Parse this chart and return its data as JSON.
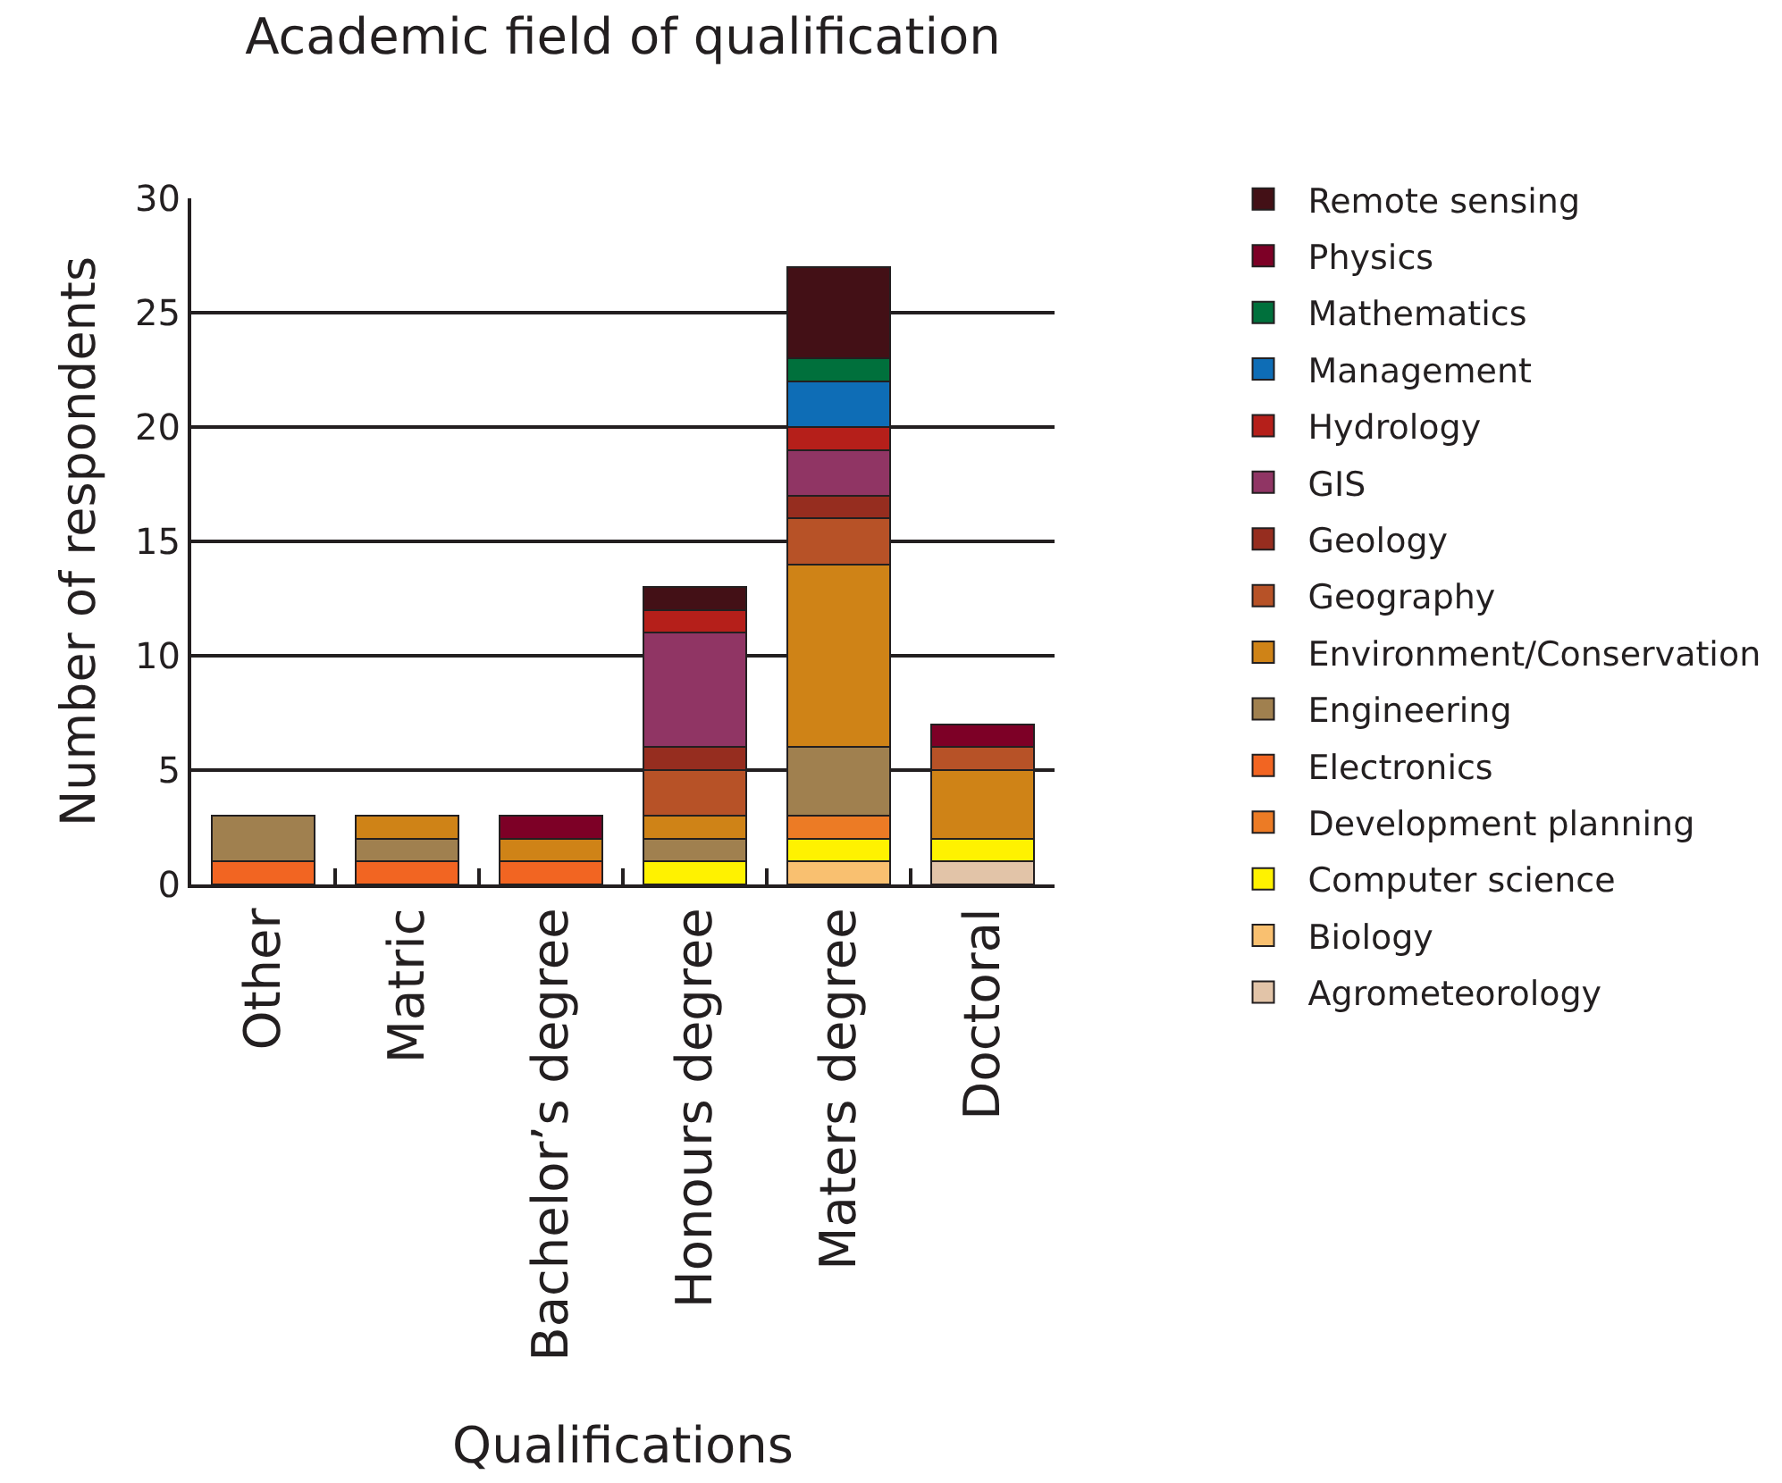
{
  "chart_data": {
    "type": "bar",
    "title": "Academic field of qualification",
    "xlabel": "Qualifications",
    "ylabel": "Number of respondents",
    "categories": [
      "Other",
      "Matric",
      "Bachelor’s degree",
      "Honours degree",
      "Maters degree",
      "Doctoral"
    ],
    "stacked": true,
    "ylim": [
      0,
      30
    ],
    "yticks": [
      0,
      5,
      10,
      15,
      20,
      25,
      30
    ],
    "grid": "y",
    "legend": "right",
    "series": [
      {
        "name": "Agrometeorology",
        "color": "#e2c4a8",
        "values": [
          null,
          null,
          null,
          null,
          null,
          1
        ]
      },
      {
        "name": "Biology",
        "color": "#f9c070",
        "values": [
          null,
          null,
          null,
          null,
          1,
          null
        ]
      },
      {
        "name": "Computer science",
        "color": "#fff200",
        "values": [
          null,
          null,
          null,
          1,
          1,
          1
        ]
      },
      {
        "name": "Development planning",
        "color": "#ec7b25",
        "values": [
          null,
          null,
          null,
          null,
          1,
          null
        ]
      },
      {
        "name": "Electronics",
        "color": "#f26522",
        "values": [
          1,
          1,
          1,
          null,
          null,
          null
        ]
      },
      {
        "name": "Engineering",
        "color": "#a0804f",
        "values": [
          2,
          1,
          null,
          1,
          3,
          null
        ]
      },
      {
        "name": "Environment/Conservation",
        "color": "#cf8317",
        "values": [
          null,
          1,
          1,
          1,
          8,
          3
        ]
      },
      {
        "name": "Geography",
        "color": "#b75227",
        "values": [
          null,
          null,
          null,
          2,
          2,
          1
        ]
      },
      {
        "name": "Geology",
        "color": "#962d1f",
        "values": [
          null,
          null,
          null,
          1,
          1,
          null
        ]
      },
      {
        "name": "GIS",
        "color": "#903564",
        "values": [
          null,
          null,
          null,
          5,
          2,
          null
        ]
      },
      {
        "name": "Hydrology",
        "color": "#b51f1a",
        "values": [
          null,
          null,
          null,
          1,
          1,
          null
        ]
      },
      {
        "name": "Management",
        "color": "#0e6db6",
        "values": [
          null,
          null,
          null,
          null,
          2,
          null
        ]
      },
      {
        "name": "Mathematics",
        "color": "#00703c",
        "values": [
          null,
          null,
          null,
          null,
          1,
          null
        ]
      },
      {
        "name": "Physics",
        "color": "#7d0026",
        "values": [
          null,
          null,
          1,
          null,
          null,
          1
        ]
      },
      {
        "name": "Remote sensing",
        "color": "#431016",
        "values": [
          null,
          null,
          null,
          1,
          4,
          null
        ]
      }
    ]
  }
}
